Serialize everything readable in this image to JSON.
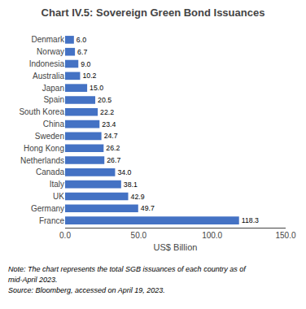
{
  "chart_data": {
    "type": "bar",
    "orientation": "horizontal",
    "title": "Chart IV.5: Sovereign Green Bond Issuances",
    "categories": [
      "France",
      "Germany",
      "UK",
      "Italy",
      "Canada",
      "Netherlands",
      "Hong Kong",
      "Sweden",
      "China",
      "South Korea",
      "Spain",
      "Japan",
      "Australia",
      "Indonesia",
      "Norway",
      "Denmark"
    ],
    "values": [
      118.3,
      49.7,
      42.9,
      38.1,
      34.0,
      26.7,
      26.2,
      24.7,
      23.4,
      22.2,
      20.5,
      15.0,
      10.2,
      9.0,
      6.7,
      6.0
    ],
    "value_labels": [
      "118.3",
      "49.7",
      "42.9",
      "38.1",
      "34.0",
      "26.7",
      "26.2",
      "24.7",
      "23.4",
      "22.2",
      "20.5",
      "15.0",
      "10.2",
      "9.0",
      "6.7",
      "6.0"
    ],
    "data_labels": true,
    "color": "#4472C4",
    "xlabel": "US$ Billion",
    "xlim": [
      0,
      150
    ],
    "xticks": [
      {
        "value": 0,
        "label": "0.0"
      },
      {
        "value": 50,
        "label": "50.0"
      },
      {
        "value": 100,
        "label": "100.0"
      },
      {
        "value": 150,
        "label": "150.0"
      }
    ],
    "grid": false,
    "annotations": [
      "Note: The chart represents the total SGB issuances of each country as of",
      "mid-April 2023.",
      "Source: Bloomberg, accessed on April 19, 2023."
    ]
  }
}
